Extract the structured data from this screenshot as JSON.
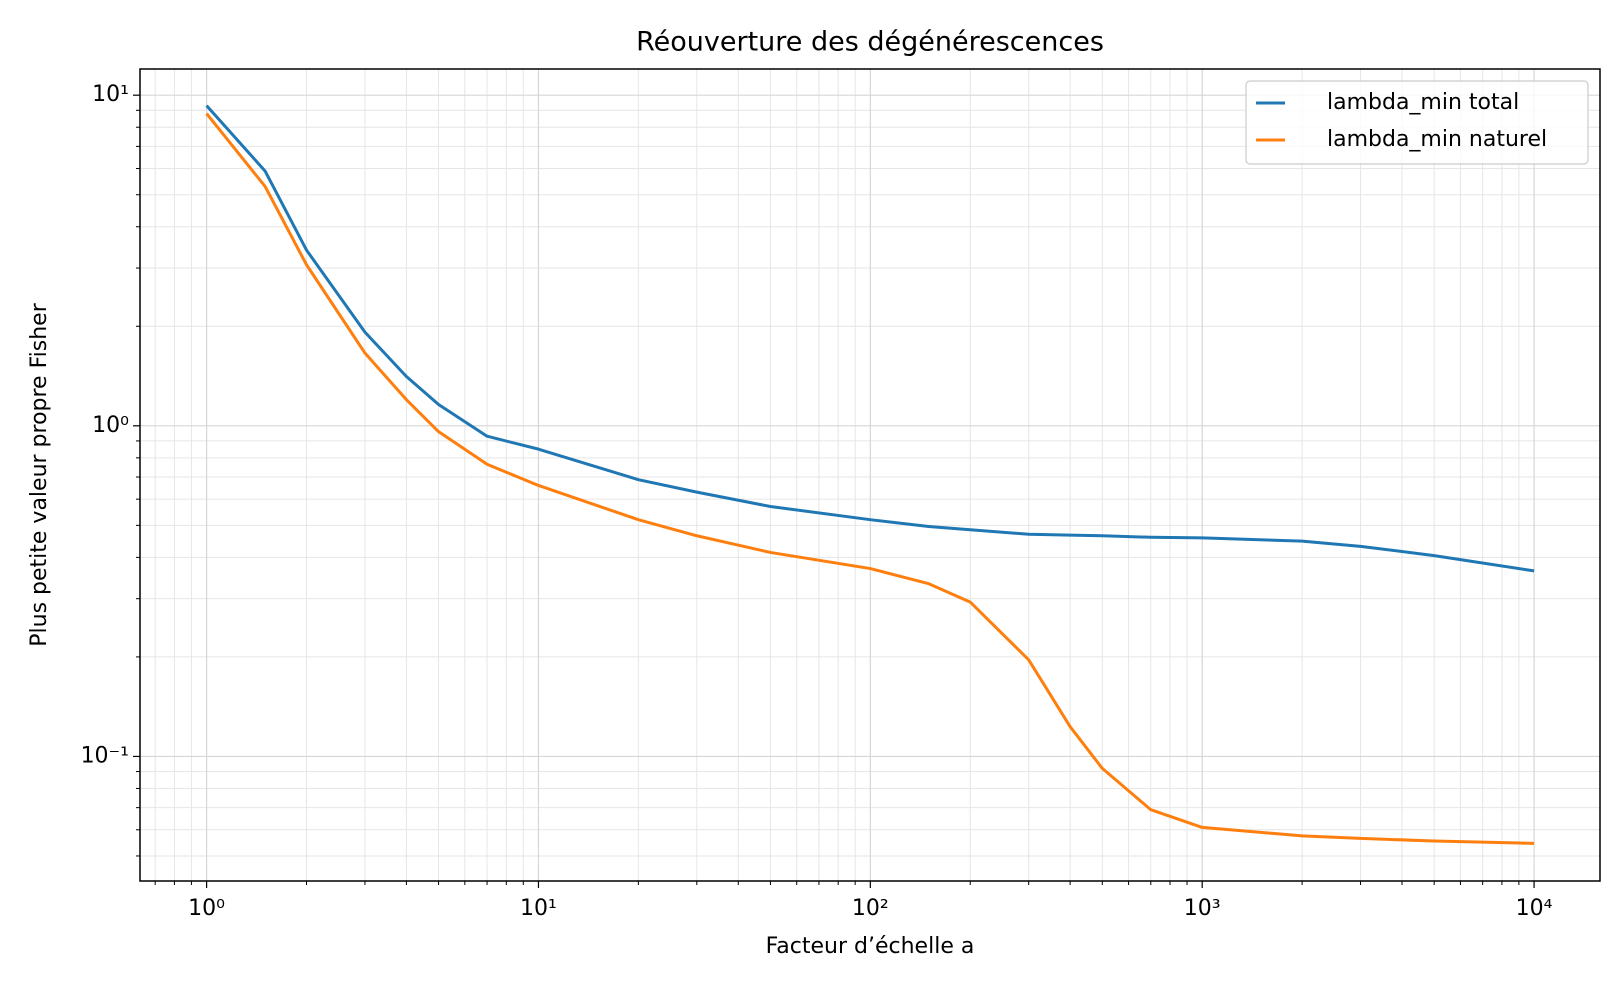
{
  "chart_data": {
    "type": "line",
    "title": "Réouverture des dégénérescences",
    "xlabel": "Facteur d’échelle a",
    "ylabel": "Plus petite valeur propre Fisher",
    "log_x": true,
    "log_y": true,
    "grid": true,
    "legend": "upper right",
    "x": [
      1,
      1.5,
      2,
      3,
      4,
      5,
      7,
      10,
      20,
      30,
      50,
      100,
      150,
      200,
      300,
      400,
      500,
      700,
      1000,
      2000,
      3000,
      5000,
      10000
    ],
    "series": [
      {
        "name": "lambda_min total",
        "color": "#1f77b4",
        "values": [
          9.3,
          5.9,
          3.4,
          1.92,
          1.41,
          1.16,
          0.93,
          0.85,
          0.687,
          0.63,
          0.57,
          0.52,
          0.496,
          0.485,
          0.47,
          0.467,
          0.465,
          0.46,
          0.458,
          0.448,
          0.432,
          0.405,
          0.364
        ]
      },
      {
        "name": "lambda_min naturel",
        "color": "#ff7f0e",
        "values": [
          8.8,
          5.3,
          3.07,
          1.66,
          1.2,
          0.96,
          0.765,
          0.66,
          0.52,
          0.465,
          0.414,
          0.37,
          0.333,
          0.293,
          0.196,
          0.123,
          0.092,
          0.069,
          0.061,
          0.0575,
          0.0565,
          0.0555,
          0.0546
        ]
      }
    ],
    "xlim": [
      0.63,
      15800
    ],
    "ylim": [
      0.042,
      12
    ],
    "xticks": [
      {
        "value": 1,
        "label": "10⁰"
      },
      {
        "value": 10,
        "label": "10¹"
      },
      {
        "value": 100,
        "label": "10²"
      },
      {
        "value": 1000,
        "label": "10³"
      },
      {
        "value": 10000,
        "label": "10⁴"
      }
    ],
    "yticks": [
      {
        "value": 0.1,
        "label": "10⁻¹"
      },
      {
        "value": 1,
        "label": "10⁰"
      },
      {
        "value": 10,
        "label": "10¹"
      }
    ],
    "xminorticks": [
      0.7,
      0.8,
      0.9,
      2,
      3,
      4,
      5,
      6,
      7,
      8,
      9,
      20,
      30,
      40,
      50,
      60,
      70,
      80,
      90,
      200,
      300,
      400,
      500,
      600,
      700,
      800,
      900,
      2000,
      3000,
      4000,
      5000,
      6000,
      7000,
      8000,
      9000
    ],
    "yminorticks": [
      0.05,
      0.06,
      0.07,
      0.08,
      0.09,
      0.2,
      0.3,
      0.4,
      0.5,
      0.6,
      0.7,
      0.8,
      0.9,
      2,
      3,
      4,
      5,
      6,
      7,
      8,
      9
    ]
  }
}
